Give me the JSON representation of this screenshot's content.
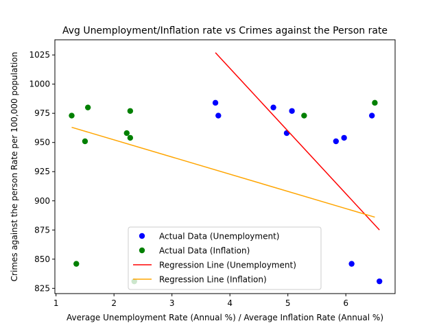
{
  "chart_data": {
    "type": "scatter",
    "title": "Avg Unemployment/Inflation rate vs Crimes against the Person rate",
    "xlabel": "Average Unemployment Rate (Annual %) / Average Inflation Rate (Annual %)",
    "ylabel": "Crimes against the person Rate per 100,000 population",
    "xlim": [
      0.98,
      6.85
    ],
    "ylim": [
      820.5,
      1038
    ],
    "x_ticks": [
      1,
      2,
      3,
      4,
      5,
      6
    ],
    "y_ticks": [
      825,
      850,
      875,
      900,
      925,
      950,
      975,
      1000,
      1025
    ],
    "grid": false,
    "legend_position": "lower-center",
    "series": [
      {
        "name": "Actual Data (Unemployment)",
        "kind": "scatter",
        "color": "#0000ff",
        "points": [
          {
            "x": 3.75,
            "y": 984
          },
          {
            "x": 3.8,
            "y": 973
          },
          {
            "x": 4.75,
            "y": 980
          },
          {
            "x": 4.98,
            "y": 958
          },
          {
            "x": 5.07,
            "y": 977
          },
          {
            "x": 5.83,
            "y": 951
          },
          {
            "x": 5.97,
            "y": 954
          },
          {
            "x": 6.1,
            "y": 846
          },
          {
            "x": 6.45,
            "y": 973
          },
          {
            "x": 6.58,
            "y": 831
          }
        ]
      },
      {
        "name": "Actual Data (Inflation)",
        "kind": "scatter",
        "color": "#008000",
        "points": [
          {
            "x": 1.27,
            "y": 973
          },
          {
            "x": 1.35,
            "y": 846
          },
          {
            "x": 1.5,
            "y": 951
          },
          {
            "x": 1.55,
            "y": 980
          },
          {
            "x": 2.22,
            "y": 958
          },
          {
            "x": 2.28,
            "y": 977
          },
          {
            "x": 2.28,
            "y": 954
          },
          {
            "x": 2.35,
            "y": 831
          },
          {
            "x": 5.28,
            "y": 973
          },
          {
            "x": 6.5,
            "y": 984
          }
        ]
      },
      {
        "name": "Regression Line (Unemployment)",
        "kind": "line",
        "color": "#ff0000",
        "points": [
          {
            "x": 3.75,
            "y": 1027
          },
          {
            "x": 6.58,
            "y": 875
          }
        ]
      },
      {
        "name": "Regression Line (Inflation)",
        "kind": "line",
        "color": "#ffa500",
        "points": [
          {
            "x": 1.27,
            "y": 963
          },
          {
            "x": 6.5,
            "y": 886
          }
        ]
      }
    ]
  }
}
